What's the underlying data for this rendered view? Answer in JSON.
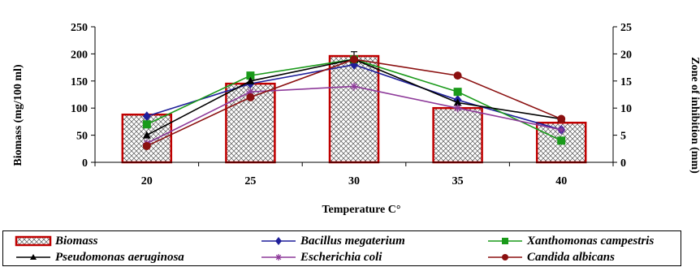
{
  "chart_data": {
    "type": "bar",
    "categories": [
      "20",
      "25",
      "30",
      "35",
      "40"
    ],
    "xlabel": "Temperature C°",
    "ylabel": "Biomass (mg/100 ml)",
    "y2label": "Zone of inhibition (mm)",
    "ylim": [
      0,
      250
    ],
    "y_ticks": [
      "0",
      "50",
      "100",
      "150",
      "200",
      "250"
    ],
    "y2lim": [
      0,
      25
    ],
    "y2_ticks": [
      "0",
      "5",
      "10",
      "15",
      "20",
      "25"
    ],
    "grid": false,
    "legend_position": "bottom",
    "bar_series": {
      "name": "Biomass",
      "values": [
        88,
        145,
        196,
        100,
        73
      ],
      "error": [
        0,
        0,
        8,
        0,
        0
      ],
      "fill_pattern": "crosshatch",
      "edge_color": "#c00000"
    },
    "series": [
      {
        "name": "Bacillus megaterium",
        "axis": "right",
        "values": [
          8.5,
          14.5,
          18.0,
          11.5,
          6.0
        ],
        "color": "#1f1f9a",
        "marker": "diamond"
      },
      {
        "name": "Xanthomonas campestris",
        "axis": "right",
        "values": [
          7.0,
          16.0,
          19.0,
          13.0,
          4.0
        ],
        "color": "#1a9a1a",
        "marker": "square"
      },
      {
        "name": "Pseudomonas aeruginosa",
        "axis": "right",
        "values": [
          5.0,
          15.0,
          19.0,
          11.0,
          8.0
        ],
        "color": "#000000",
        "marker": "triangle"
      },
      {
        "name": "Escherichia coli",
        "axis": "right",
        "values": [
          3.5,
          13.0,
          14.0,
          10.0,
          6.0
        ],
        "color": "#8e3a9a",
        "marker": "star"
      },
      {
        "name": "Candida albicans",
        "axis": "right",
        "values": [
          3.0,
          12.0,
          19.0,
          16.0,
          8.0
        ],
        "color": "#8b1010",
        "marker": "circle"
      }
    ]
  }
}
